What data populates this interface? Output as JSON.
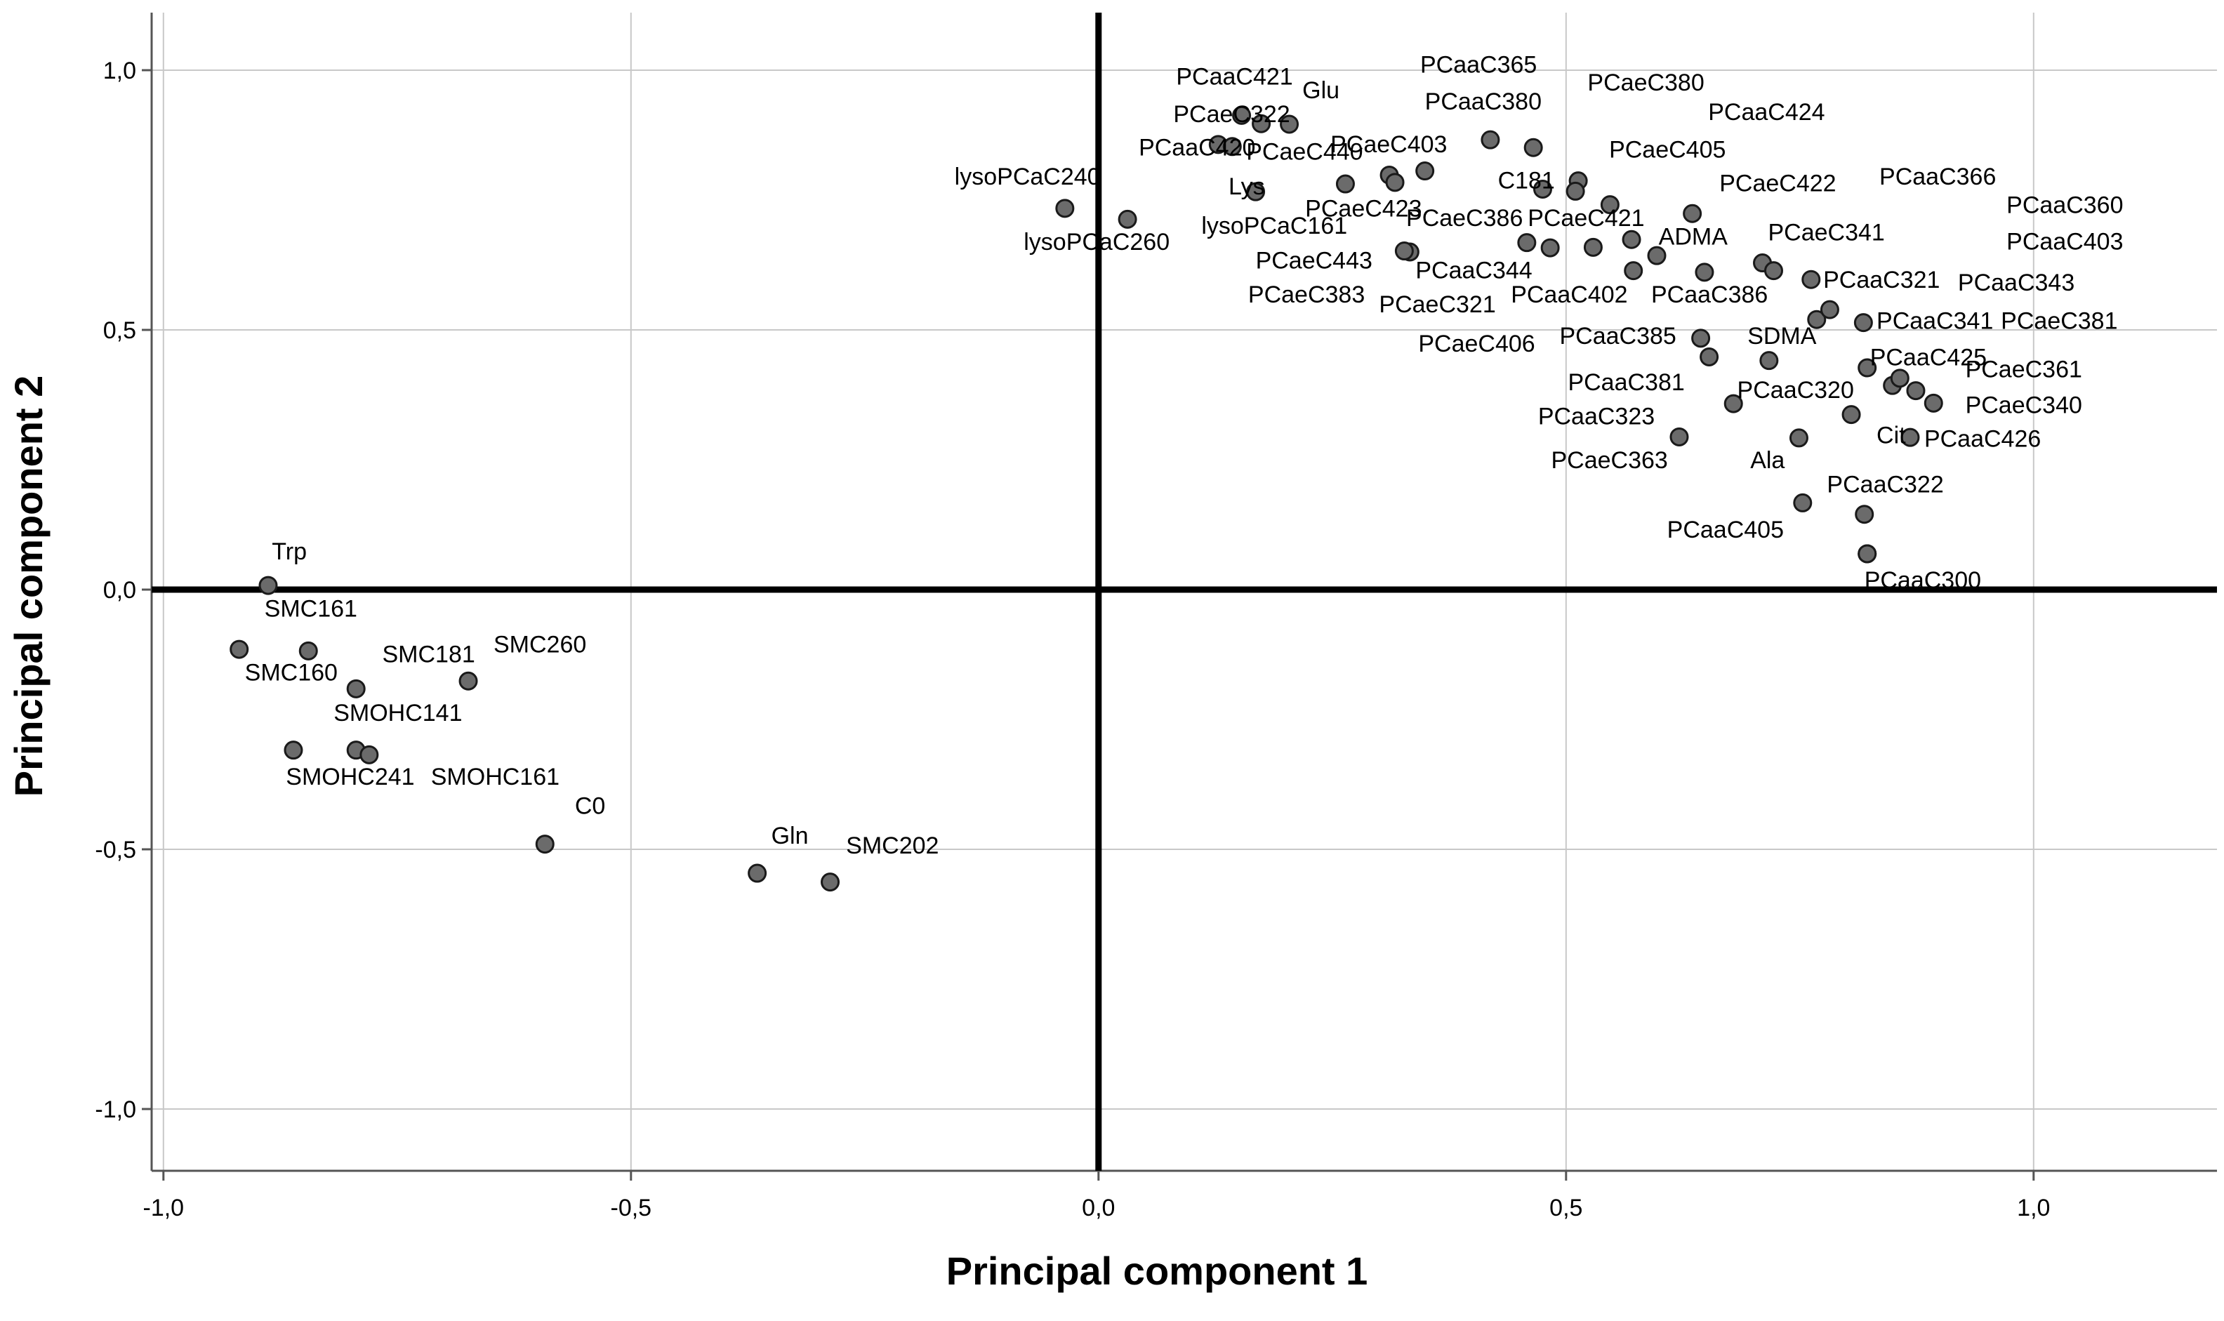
{
  "chart_data": {
    "type": "scatter",
    "title": "",
    "xlabel": "Principal component 1",
    "ylabel": "Principal component 2",
    "xlim": [
      -1.1,
      1.1
    ],
    "ylim": [
      -1.1,
      1.1
    ],
    "x_ticks": [
      -1.0,
      -0.5,
      0.0,
      0.5,
      1.0
    ],
    "y_ticks": [
      -1.0,
      -0.5,
      0.0,
      0.5,
      1.0
    ],
    "x_tick_labels": [
      "-1,0",
      "-0,5",
      "0,0",
      "0,5",
      "1,0"
    ],
    "y_tick_labels": [
      "-1,0",
      "-0,5",
      "0,0",
      "0,5",
      "1,0"
    ],
    "grid": true,
    "colors": {
      "point_fill": "#6b6b6b",
      "point_stroke": "#1a1a1a",
      "grid": "#c8c8c8",
      "axis": "#000000"
    },
    "points": [
      {
        "label": "Trp",
        "x": -0.888,
        "y": 0.008
      },
      {
        "label": "SMC161",
        "x": -0.845,
        "y": -0.118
      },
      {
        "label": "SMC160",
        "x": -0.919,
        "y": -0.115
      },
      {
        "label": "SMC181",
        "x": -0.794,
        "y": -0.191
      },
      {
        "label": "SMC260",
        "x": -0.674,
        "y": -0.176
      },
      {
        "label": "SMOHC141",
        "x": -0.861,
        "y": -0.309
      },
      {
        "label": "SMOHC241",
        "x": -0.794,
        "y": -0.309
      },
      {
        "label": "SMOHC161",
        "x": -0.78,
        "y": -0.318
      },
      {
        "label": "C0",
        "x": -0.592,
        "y": -0.49
      },
      {
        "label": "Gln",
        "x": -0.365,
        "y": -0.546
      },
      {
        "label": "SMC202",
        "x": -0.287,
        "y": -0.563
      },
      {
        "label": "lysoPCaC240",
        "x": -0.036,
        "y": 0.734
      },
      {
        "label": "lysoPCaC260",
        "x": 0.031,
        "y": 0.713
      },
      {
        "label": "lysoPCaC161",
        "x": 0.333,
        "y": 0.65
      },
      {
        "label": "PCaaC421",
        "x": 0.153,
        "y": 0.913
      },
      {
        "label": "PCaeC322",
        "x": 0.174,
        "y": 0.897
      },
      {
        "label": "Glu",
        "x": 0.204,
        "y": 0.896
      },
      {
        "label": "PCaaC420",
        "x": 0.128,
        "y": 0.857
      },
      {
        "label": "PCaeC440",
        "x": 0.143,
        "y": 0.853
      },
      {
        "label": "Lys",
        "x": 0.168,
        "y": 0.766
      },
      {
        "label": "PCaeC403",
        "x": 0.264,
        "y": 0.781
      },
      {
        "label": "PCaeC423",
        "x": 0.311,
        "y": 0.798
      },
      {
        "label": "PCaaC365",
        "x": 0.317,
        "y": 0.784
      },
      {
        "label": "PCaaC380",
        "x": 0.349,
        "y": 0.806
      },
      {
        "label": "PCaeC380",
        "x": 0.419,
        "y": 0.866
      },
      {
        "label": "PCaeC386",
        "x": 0.327,
        "y": 0.652
      },
      {
        "label": "PCaeC443",
        "x": 0.458,
        "y": 0.668
      },
      {
        "label": "PCaaC344",
        "x": 0.483,
        "y": 0.658
      },
      {
        "label": "PCaeC383",
        "x": 0.529,
        "y": 0.659
      },
      {
        "label": "C181",
        "x": 0.475,
        "y": 0.771
      },
      {
        "label": "PCaeC405",
        "x": 0.465,
        "y": 0.851
      },
      {
        "label": "PCaaC424",
        "x": 0.513,
        "y": 0.787
      },
      {
        "label": "PCaeC421",
        "x": 0.51,
        "y": 0.767
      },
      {
        "label": "PCaeC422",
        "x": 0.547,
        "y": 0.741
      },
      {
        "label": "PCaeC321",
        "x": 0.572,
        "y": 0.614
      },
      {
        "label": "ADMA",
        "x": 0.57,
        "y": 0.674
      },
      {
        "label": "PCaaC402",
        "x": 0.597,
        "y": 0.643
      },
      {
        "label": "PCaaC366",
        "x": 0.635,
        "y": 0.724
      },
      {
        "label": "PCaaC386",
        "x": 0.648,
        "y": 0.611
      },
      {
        "label": "PCaeC341",
        "x": 0.71,
        "y": 0.629
      },
      {
        "label": "PCaaC360",
        "x": 0.722,
        "y": 0.614
      },
      {
        "label": "PCaaC403",
        "x": 0.762,
        "y": 0.597
      },
      {
        "label": "PCaaC321",
        "x": 0.768,
        "y": 0.52
      },
      {
        "label": "PCaaC343",
        "x": 0.782,
        "y": 0.539
      },
      {
        "label": "PCaaC341",
        "x": 0.818,
        "y": 0.514
      },
      {
        "label": "PCaeC381",
        "x": 0.822,
        "y": 0.427
      },
      {
        "label": "PCaeC406",
        "x": 0.644,
        "y": 0.484
      },
      {
        "label": "PCaaC385",
        "x": 0.653,
        "y": 0.448
      },
      {
        "label": "SDMA",
        "x": 0.717,
        "y": 0.441
      },
      {
        "label": "PCaaC425",
        "x": 0.849,
        "y": 0.393
      },
      {
        "label": "PCaaC381",
        "x": 0.857,
        "y": 0.407
      },
      {
        "label": "PCaeC361",
        "x": 0.874,
        "y": 0.383
      },
      {
        "label": "PCaeC340",
        "x": 0.893,
        "y": 0.359
      },
      {
        "label": "PCaaC320",
        "x": 0.679,
        "y": 0.358
      },
      {
        "label": "PCaaC323",
        "x": 0.805,
        "y": 0.337
      },
      {
        "label": "PCaeC363",
        "x": 0.621,
        "y": 0.294
      },
      {
        "label": "Ala",
        "x": 0.749,
        "y": 0.292
      },
      {
        "label": "Cit",
        "x": 0.868,
        "y": 0.293
      },
      {
        "label": "PCaaC426",
        "x": 0.819,
        "y": 0.145
      },
      {
        "label": "PCaaC322",
        "x": 0.753,
        "y": 0.167
      },
      {
        "label": "PCaaC405",
        "x": 0.822,
        "y": 0.069
      },
      {
        "label": "PCaaC300",
        "x": 0.822,
        "y": 0.069
      }
    ],
    "point_labels": [
      {
        "text": "Trp",
        "x": -0.884,
        "y": 0.058
      },
      {
        "text": "SMC161",
        "x": -0.892,
        "y": -0.052
      },
      {
        "text": "SMC160",
        "x": -0.913,
        "y": -0.175
      },
      {
        "text": "SMC181",
        "x": -0.766,
        "y": -0.14
      },
      {
        "text": "SMC260",
        "x": -0.647,
        "y": -0.121
      },
      {
        "text": "SMOHC141",
        "x": -0.818,
        "y": -0.253
      },
      {
        "text": "SMOHC241",
        "x": -0.869,
        "y": -0.376
      },
      {
        "text": "SMOHC161",
        "x": -0.714,
        "y": -0.376
      },
      {
        "text": "C0",
        "x": -0.56,
        "y": -0.432
      },
      {
        "text": "Gln",
        "x": -0.35,
        "y": -0.489
      },
      {
        "text": "SMC202",
        "x": -0.27,
        "y": -0.508
      },
      {
        "text": "lysoPCaC240",
        "x": -0.154,
        "y": 0.78
      },
      {
        "text": "lysoPCaC260",
        "x": -0.08,
        "y": 0.654
      },
      {
        "text": "lysoPCaC161",
        "x": 0.11,
        "y": 0.685
      },
      {
        "text": "PCaaC421",
        "x": 0.083,
        "y": 0.972
      },
      {
        "text": "PCaeC322",
        "x": 0.08,
        "y": 0.9
      },
      {
        "text": "Glu",
        "x": 0.218,
        "y": 0.946
      },
      {
        "text": "PCaaC420",
        "x": 0.043,
        "y": 0.836
      },
      {
        "text": "PCaeC440",
        "x": 0.158,
        "y": 0.828
      },
      {
        "text": "PCaeC403",
        "x": 0.248,
        "y": 0.842
      },
      {
        "text": "Lys",
        "x": 0.139,
        "y": 0.761
      },
      {
        "text": "PCaeC423",
        "x": 0.221,
        "y": 0.718
      },
      {
        "text": "PCaaC365",
        "x": 0.344,
        "y": 0.995
      },
      {
        "text": "PCaaC380",
        "x": 0.349,
        "y": 0.924
      },
      {
        "text": "PCaeC380",
        "x": 0.523,
        "y": 0.961
      },
      {
        "text": "PCaaC424",
        "x": 0.652,
        "y": 0.904
      },
      {
        "text": "PCaeC405",
        "x": 0.546,
        "y": 0.832
      },
      {
        "text": "C181",
        "x": 0.427,
        "y": 0.772
      },
      {
        "text": "PCaeC422",
        "x": 0.664,
        "y": 0.767
      },
      {
        "text": "PCaaC366",
        "x": 0.835,
        "y": 0.78
      },
      {
        "text": "PCaaC360",
        "x": 0.971,
        "y": 0.725
      },
      {
        "text": "PCaeC386",
        "x": 0.329,
        "y": 0.7
      },
      {
        "text": "PCaeC421",
        "x": 0.459,
        "y": 0.7
      },
      {
        "text": "ADMA",
        "x": 0.599,
        "y": 0.664
      },
      {
        "text": "PCaeC341",
        "x": 0.716,
        "y": 0.672
      },
      {
        "text": "PCaaC403",
        "x": 0.971,
        "y": 0.655
      },
      {
        "text": "PCaeC443",
        "x": 0.168,
        "y": 0.618
      },
      {
        "text": "PCaaC344",
        "x": 0.339,
        "y": 0.599
      },
      {
        "text": "PCaeC383",
        "x": 0.16,
        "y": 0.553
      },
      {
        "text": "PCaeC321",
        "x": 0.3,
        "y": 0.534
      },
      {
        "text": "PCaaC402",
        "x": 0.441,
        "y": 0.553
      },
      {
        "text": "PCaaC386",
        "x": 0.591,
        "y": 0.553
      },
      {
        "text": "PCaaC321",
        "x": 0.775,
        "y": 0.581
      },
      {
        "text": "PCaaC343",
        "x": 0.919,
        "y": 0.576
      },
      {
        "text": "PCaaC341",
        "x": 0.832,
        "y": 0.502
      },
      {
        "text": "PCaeC381",
        "x": 0.965,
        "y": 0.502
      },
      {
        "text": "PCaeC406",
        "x": 0.342,
        "y": 0.458
      },
      {
        "text": "PCaaC385",
        "x": 0.493,
        "y": 0.473
      },
      {
        "text": "SDMA",
        "x": 0.694,
        "y": 0.473
      },
      {
        "text": "PCaaC425",
        "x": 0.825,
        "y": 0.432
      },
      {
        "text": "PCaeC361",
        "x": 0.927,
        "y": 0.409
      },
      {
        "text": "PCaaC381",
        "x": 0.502,
        "y": 0.384
      },
      {
        "text": "PCaaC320",
        "x": 0.683,
        "y": 0.369
      },
      {
        "text": "PCaeC340",
        "x": 0.927,
        "y": 0.34
      },
      {
        "text": "PCaaC323",
        "x": 0.47,
        "y": 0.318
      },
      {
        "text": "Cit",
        "x": 0.832,
        "y": 0.282
      },
      {
        "text": "PCaaC426",
        "x": 0.883,
        "y": 0.275
      },
      {
        "text": "PCaeC363",
        "x": 0.484,
        "y": 0.234
      },
      {
        "text": "Ala",
        "x": 0.697,
        "y": 0.234
      },
      {
        "text": "PCaaC322",
        "x": 0.779,
        "y": 0.187
      },
      {
        "text": "PCaaC405",
        "x": 0.608,
        "y": 0.1
      },
      {
        "text": "PCaaC300",
        "x": 0.819,
        "y": 0.003
      }
    ]
  }
}
